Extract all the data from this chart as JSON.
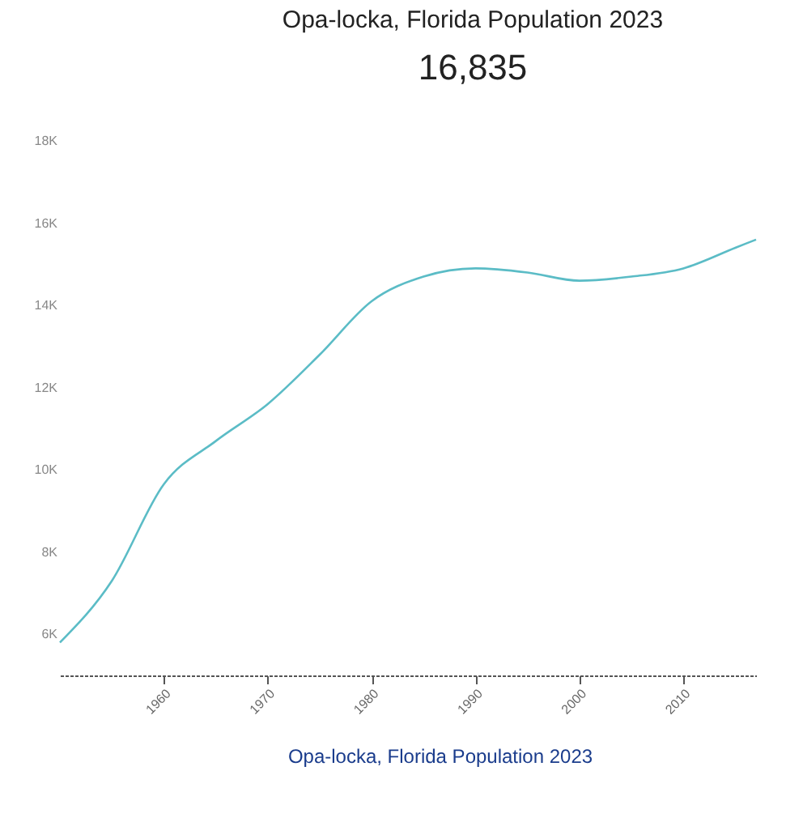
{
  "chart_data": {
    "type": "line",
    "title": "Opa-locka, Florida Population 2023",
    "subtitle": "16,835",
    "x": [
      1950,
      1955,
      1960,
      1965,
      1970,
      1975,
      1980,
      1985,
      1990,
      1995,
      2000,
      2005,
      2010,
      2015,
      2017
    ],
    "series": [
      {
        "color": "#5bbcc6",
        "values": [
          5800,
          7300,
          9650,
          10700,
          11600,
          12800,
          14100,
          14700,
          14900,
          14800,
          14600,
          14700,
          14900,
          15400,
          15600
        ]
      }
    ],
    "xlim": [
      1950,
      2017
    ],
    "xticks": [
      1960,
      1970,
      1980,
      1990,
      2000,
      2010
    ],
    "ylim": [
      5000,
      18000
    ],
    "yticks": [
      {
        "value": 6000,
        "label": "6K"
      },
      {
        "value": 8000,
        "label": "8K"
      },
      {
        "value": 10000,
        "label": "10K"
      },
      {
        "value": 12000,
        "label": "12K"
      },
      {
        "value": 14000,
        "label": "14K"
      },
      {
        "value": 16000,
        "label": "16K"
      },
      {
        "value": 18000,
        "label": "18K"
      }
    ],
    "grid": false,
    "legend": false,
    "marker": "none",
    "line_style": "solid",
    "annotations": [
      "Opa-locka, Florida Population 2023"
    ]
  }
}
